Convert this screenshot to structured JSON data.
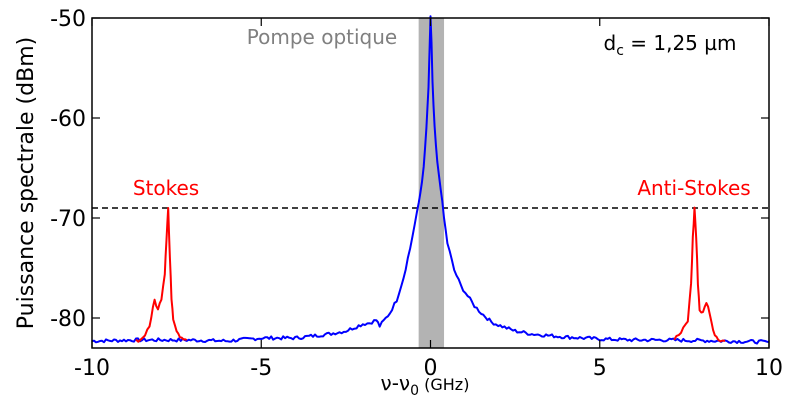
{
  "chart_data": {
    "type": "line",
    "xlabel": "ν-ν",
    "xlabel_sub": "0",
    "xlabel_unit": " (GHz)",
    "ylabel": "Puissance spectrale (dBm)",
    "xlim": [
      -10,
      10
    ],
    "ylim": [
      -83,
      -50
    ],
    "x_ticks": [
      -10,
      -5,
      0,
      5,
      10
    ],
    "x_tick_labels": [
      "-10",
      "-5",
      "0",
      "5",
      "10"
    ],
    "y_ticks": [
      -80,
      -70,
      -60,
      -50
    ],
    "y_tick_labels": [
      "-80",
      "-70",
      "-60",
      "-50"
    ],
    "grid": false,
    "pump_band": {
      "x0": -0.35,
      "x1": 0.4,
      "color": "#b3b3b3",
      "label": "Pompe optique",
      "label_color": "#808080"
    },
    "threshold_line": {
      "y": -69,
      "style": "dashed",
      "color": "#000000"
    },
    "annotation_dc": {
      "prefix": "d",
      "sub": "c",
      "suffix": " = 1,25 µm"
    },
    "stokes_label": {
      "text": "Stokes",
      "color": "#ff0000"
    },
    "antistokes_label": {
      "text": "Anti-Stokes",
      "color": "#ff0000"
    },
    "series": [
      {
        "color": "#0000ff",
        "x": [
          -10,
          -8.7,
          -7.2,
          -6,
          -5,
          -4,
          -3,
          -2.5,
          -2,
          -1.8,
          -1.6,
          -1.5,
          -1.2,
          -1,
          -0.8,
          -0.6,
          -0.4,
          -0.3,
          -0.2,
          -0.12,
          -0.06,
          -0.02,
          0,
          0.03,
          0.06,
          0.12,
          0.2,
          0.3,
          0.4,
          0.5,
          0.7,
          0.9,
          1.1,
          1.3,
          1.5,
          1.8,
          2,
          2.5,
          3,
          4,
          5,
          6,
          7,
          8.7,
          10
        ],
        "y": [
          -82.3,
          -82.2,
          -82.2,
          -82.3,
          -82.0,
          -82.0,
          -81.6,
          -81.3,
          -80.6,
          -80.5,
          -80.2,
          -80.8,
          -79.5,
          -78.2,
          -76.0,
          -73.0,
          -69.5,
          -67.5,
          -65.0,
          -61.0,
          -57.0,
          -52.5,
          -49.8,
          -52.5,
          -56.5,
          -61.0,
          -64.5,
          -67.0,
          -70.0,
          -72.5,
          -75.2,
          -76.8,
          -77.8,
          -78.8,
          -79.5,
          -80.4,
          -80.7,
          -81.3,
          -81.6,
          -81.9,
          -82.1,
          -82.2,
          -82.2,
          -82.3,
          -82.4
        ]
      },
      {
        "name": "Stokes",
        "color": "#ff0000",
        "x": [
          -8.7,
          -8.5,
          -8.3,
          -8.15,
          -8.05,
          -7.95,
          -7.85,
          -7.8,
          -7.75,
          -7.7,
          -7.65,
          -7.6,
          -7.5,
          -7.4,
          -7.3,
          -7.2
        ],
        "y": [
          -82.3,
          -82.0,
          -80.8,
          -78.2,
          -79.2,
          -78.0,
          -75.5,
          -72.0,
          -69.0,
          -74.0,
          -78.0,
          -80.0,
          -81.2,
          -81.8,
          -82.0,
          -82.2
        ]
      },
      {
        "name": "Anti-Stokes",
        "color": "#ff0000",
        "x": [
          7.2,
          7.4,
          7.6,
          7.7,
          7.75,
          7.8,
          7.85,
          7.9,
          7.95,
          8.05,
          8.15,
          8.25,
          8.35,
          8.5,
          8.7
        ],
        "y": [
          -82.1,
          -81.5,
          -80.3,
          -76.5,
          -72.0,
          -69.0,
          -72.0,
          -76.5,
          -79.2,
          -79.5,
          -78.4,
          -79.5,
          -81.3,
          -82.1,
          -82.3
        ]
      }
    ]
  }
}
